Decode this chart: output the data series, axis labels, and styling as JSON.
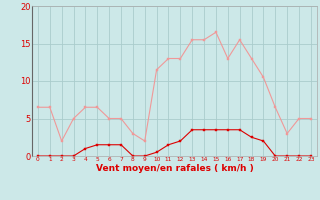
{
  "hours": [
    0,
    1,
    2,
    3,
    4,
    5,
    6,
    7,
    8,
    9,
    10,
    11,
    12,
    13,
    14,
    15,
    16,
    17,
    18,
    19,
    20,
    21,
    22,
    23
  ],
  "rafales": [
    6.5,
    6.5,
    2.0,
    5.0,
    6.5,
    6.5,
    5.0,
    5.0,
    3.0,
    2.0,
    11.5,
    13.0,
    13.0,
    15.5,
    15.5,
    16.5,
    13.0,
    15.5,
    13.0,
    10.5,
    6.5,
    3.0,
    5.0,
    5.0
  ],
  "moyen": [
    0.0,
    0.0,
    0.0,
    0.0,
    1.0,
    1.5,
    1.5,
    1.5,
    0.0,
    0.0,
    0.5,
    1.5,
    2.0,
    3.5,
    3.5,
    3.5,
    3.5,
    3.5,
    2.5,
    2.0,
    0.0,
    0.0,
    0.0,
    0.0
  ],
  "bg_color": "#cce8e8",
  "grid_color": "#aacccc",
  "line_color_rafales": "#f09898",
  "line_color_moyen": "#dd0000",
  "marker_color_rafales": "#f09898",
  "marker_color_moyen": "#dd0000",
  "xlabel": "Vent moyen/en rafales ( km/h )",
  "ylim": [
    0,
    20
  ],
  "yticks": [
    0,
    5,
    10,
    15,
    20
  ],
  "xticks": [
    0,
    1,
    2,
    3,
    4,
    5,
    6,
    7,
    8,
    9,
    10,
    11,
    12,
    13,
    14,
    15,
    16,
    17,
    18,
    19,
    20,
    21,
    22,
    23
  ],
  "xlabel_color": "#dd0000",
  "tick_color": "#dd0000",
  "ytick_fontsize": 6,
  "xtick_fontsize": 4.2,
  "xlabel_fontsize": 6.5
}
